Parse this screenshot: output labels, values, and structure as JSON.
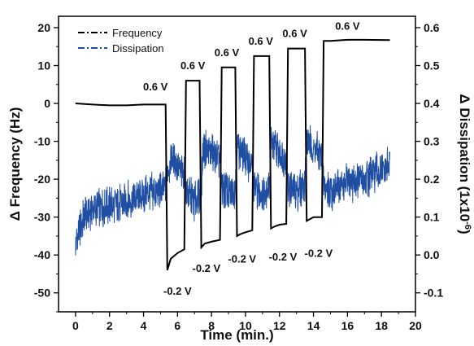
{
  "chart_data": {
    "type": "line",
    "xlabel": "Time (min.)",
    "ylabel_left": "Δ Frequency (Hz)",
    "ylabel_right": "Δ Dissipation (1x10",
    "ylabel_right_sup": "-6",
    "ylabel_right_close": ")",
    "xlim": [
      -1,
      20
    ],
    "ylim_left": [
      -55,
      23
    ],
    "ylim_right": [
      -0.15,
      0.63
    ],
    "x_ticks": [
      0,
      2,
      4,
      6,
      8,
      10,
      12,
      14,
      16,
      18,
      20
    ],
    "y_left_ticks": [
      20,
      10,
      0,
      -10,
      -20,
      -30,
      -40,
      -50
    ],
    "y_right_ticks": [
      0.6,
      0.5,
      0.4,
      0.3,
      0.2,
      0.1,
      0.0,
      -0.1
    ],
    "y_right_tick_labels": [
      "0.6",
      "0.5",
      "0.4",
      "0.3",
      "0.2",
      "0.1",
      "0.0",
      "-0.1"
    ],
    "legend": {
      "placement": "top-left",
      "entries": [
        {
          "label": "Frequency",
          "color": "#000000"
        },
        {
          "label": "Dissipation",
          "color": "#1f4ea3"
        }
      ]
    },
    "series": [
      {
        "name": "Frequency",
        "axis": "left",
        "color": "#000000",
        "x": [
          0,
          1,
          2,
          3,
          4,
          5.3,
          5.4,
          5.6,
          6,
          6.4,
          6.5,
          7.3,
          7.4,
          7.6,
          8,
          8.5,
          8.6,
          9.4,
          9.5,
          9.7,
          10,
          10.4,
          10.5,
          11.4,
          11.5,
          11.7,
          12,
          12.4,
          12.5,
          13.5,
          13.6,
          13.8,
          14,
          14.5,
          14.6,
          15,
          16,
          17,
          18.5
        ],
        "y": [
          0,
          -0.3,
          -0.5,
          -0.5,
          -0.3,
          -0.3,
          -44,
          -41,
          -39.5,
          -38.5,
          6,
          6,
          -38,
          -37,
          -36.5,
          -36,
          9.5,
          9.5,
          -35,
          -34.5,
          -34,
          -33.5,
          12.5,
          12.5,
          -33,
          -32.5,
          -32,
          -31.8,
          14.5,
          14.5,
          -31,
          -30.5,
          -30,
          -30,
          16.5,
          16.5,
          16.8,
          16.8,
          16.7
        ]
      },
      {
        "name": "Dissipation",
        "axis": "right",
        "color": "#1f4ea3",
        "x": [
          0,
          0.5,
          1,
          2,
          3,
          4,
          5,
          5.3,
          5.4,
          5.7,
          6,
          6.4,
          6.5,
          7,
          7.4,
          7.5,
          8,
          8.5,
          8.6,
          9,
          9.4,
          9.5,
          10,
          10.4,
          10.5,
          11,
          11.4,
          11.5,
          12,
          12.4,
          12.5,
          13,
          13.5,
          13.6,
          14,
          14.5,
          14.6,
          15,
          16,
          17,
          18,
          18.5
        ],
        "y": [
          0.03,
          0.1,
          0.12,
          0.13,
          0.14,
          0.16,
          0.17,
          0.18,
          0.22,
          0.26,
          0.23,
          0.21,
          0.17,
          0.14,
          0.16,
          0.28,
          0.27,
          0.25,
          0.18,
          0.16,
          0.18,
          0.29,
          0.26,
          0.23,
          0.18,
          0.16,
          0.19,
          0.3,
          0.27,
          0.25,
          0.18,
          0.17,
          0.19,
          0.31,
          0.28,
          0.26,
          0.18,
          0.17,
          0.19,
          0.2,
          0.22,
          0.23
        ]
      }
    ],
    "annotations": [
      {
        "text": "0.6 V",
        "x": 4.7,
        "y": 3.5
      },
      {
        "text": "0.6 V",
        "x": 6.9,
        "y": 9
      },
      {
        "text": "0.6 V",
        "x": 8.9,
        "y": 12.5
      },
      {
        "text": "0.6 V",
        "x": 10.9,
        "y": 15.5
      },
      {
        "text": "0.6 V",
        "x": 12.9,
        "y": 17.5
      },
      {
        "text": "0.6 V",
        "x": 16.0,
        "y": 19.5
      },
      {
        "text": "-0.2 V",
        "x": 6.0,
        "y": -50.5
      },
      {
        "text": "-0.2 V",
        "x": 7.7,
        "y": -44.5
      },
      {
        "text": "-0.2 V",
        "x": 9.8,
        "y": -42
      },
      {
        "text": "-0.2 V",
        "x": 12.2,
        "y": -41.5
      },
      {
        "text": "-0.2 V",
        "x": 14.3,
        "y": -40.5
      }
    ]
  }
}
